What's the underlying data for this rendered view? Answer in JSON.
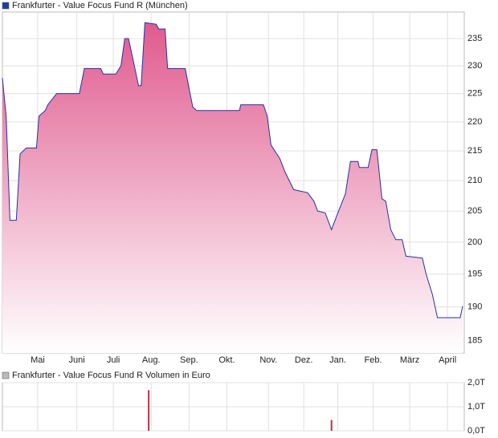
{
  "chart_data": [
    {
      "type": "area",
      "title": "Frankfurter - Value Focus Fund R (München)",
      "legend_color": "#1f3f99",
      "line_color": "#2233aa",
      "fill_top": "#e05a8e",
      "fill_bottom": "#ffffff",
      "log_scale": true,
      "grid": true,
      "x": [
        0,
        3,
        6,
        11,
        14,
        19,
        27,
        29,
        34,
        36,
        43,
        61,
        65,
        78,
        80,
        90,
        94,
        97,
        100,
        103,
        108,
        110,
        113,
        122,
        124,
        129,
        131,
        145,
        148,
        151,
        154,
        188,
        189,
        207,
        210,
        213,
        220,
        224,
        231,
        242,
        247,
        250,
        256,
        261,
        266,
        272,
        276,
        282,
        283,
        290,
        293,
        297,
        301,
        304,
        308,
        312,
        317,
        320,
        333,
        336,
        341,
        345,
        363,
        365
      ],
      "values": [
        227.8,
        221,
        203.5,
        203.5,
        214.5,
        215.5,
        215.5,
        221,
        222,
        223,
        225,
        225,
        229.5,
        229.5,
        228.5,
        228.5,
        230,
        235,
        235,
        231.8,
        226.4,
        226.4,
        238,
        237.7,
        236.8,
        236.8,
        229.5,
        229.5,
        226,
        222.6,
        222,
        222,
        223,
        223,
        221,
        216,
        213.7,
        211.5,
        208.5,
        208,
        206.6,
        205,
        204.7,
        202,
        204.7,
        207.8,
        213.2,
        213.2,
        212.2,
        212.2,
        215.2,
        215.2,
        207,
        206.6,
        202,
        200.4,
        200.4,
        197.8,
        197.5,
        195,
        191.9,
        188.4,
        188.4,
        190.1
      ],
      "xlim": [
        0,
        365
      ],
      "ylim": [
        183.2,
        240
      ],
      "yticks": [
        185,
        190,
        195,
        200,
        205,
        210,
        215,
        220,
        225,
        230,
        235
      ],
      "xticks": [
        {
          "value": 28,
          "label": "Mai"
        },
        {
          "value": 59,
          "label": "Juni"
        },
        {
          "value": 88,
          "label": "Juli"
        },
        {
          "value": 118,
          "label": "Aug."
        },
        {
          "value": 148,
          "label": "Sep."
        },
        {
          "value": 178,
          "label": "Okt."
        },
        {
          "value": 211,
          "label": "Nov."
        },
        {
          "value": 239,
          "label": "Dez."
        },
        {
          "value": 266,
          "label": "Jan."
        },
        {
          "value": 294,
          "label": "Feb."
        },
        {
          "value": 323,
          "label": "März"
        },
        {
          "value": 353,
          "label": "April"
        }
      ]
    },
    {
      "type": "bar",
      "title": "Frankfurter - Value Focus Fund R Volumen in Euro",
      "legend_color": "#bbbbbb",
      "color": "#c03040",
      "grid": true,
      "x": [
        116,
        261
      ],
      "values": [
        1690,
        450
      ],
      "xlim": [
        0,
        365
      ],
      "ylim": [
        0,
        2000
      ],
      "yticks": [
        {
          "value": 0,
          "label": "0,0T"
        },
        {
          "value": 1000,
          "label": "1,0T"
        },
        {
          "value": 2000,
          "label": "2,0T"
        }
      ]
    }
  ]
}
